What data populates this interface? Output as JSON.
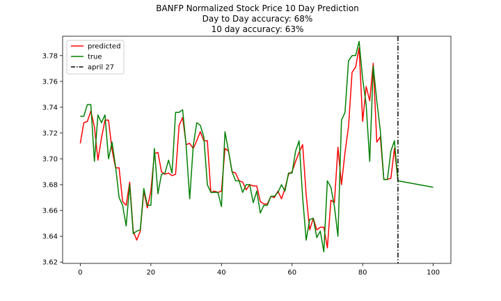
{
  "chart_data": {
    "type": "line",
    "title": "BANFP Normalized Stock Price 10 Day Prediction",
    "subtitle_lines": [
      "Day to Day accuracy: 68%",
      "10 day accuracy: 63%"
    ],
    "xlabel": "",
    "ylabel": "",
    "xlim": [
      -5,
      105
    ],
    "ylim": [
      3.619,
      3.795
    ],
    "x_ticks": [
      0,
      20,
      40,
      60,
      80,
      100
    ],
    "y_ticks": [
      3.62,
      3.64,
      3.66,
      3.68,
      3.7,
      3.72,
      3.74,
      3.76,
      3.78
    ],
    "y_tick_labels": [
      "3.62",
      "3.64",
      "3.66",
      "3.68",
      "3.70",
      "3.72",
      "3.74",
      "3.76",
      "3.78"
    ],
    "grid": false,
    "legend_position": "top-left",
    "series": [
      {
        "name": "predicted",
        "color": "#ff0000",
        "x": [
          0,
          1,
          2,
          3,
          4,
          5,
          6,
          7,
          8,
          9,
          10,
          11,
          12,
          13,
          14,
          15,
          16,
          17,
          18,
          19,
          20,
          21,
          22,
          23,
          24,
          25,
          26,
          27,
          28,
          29,
          30,
          31,
          32,
          33,
          34,
          35,
          36,
          37,
          38,
          39,
          40,
          41,
          42,
          43,
          44,
          45,
          46,
          47,
          48,
          49,
          50,
          51,
          52,
          53,
          54,
          55,
          56,
          57,
          58,
          59,
          60,
          61,
          62,
          63,
          64,
          65,
          66,
          67,
          68,
          69,
          70,
          71,
          72,
          73,
          74,
          75,
          76,
          77,
          78,
          79,
          80,
          81,
          82,
          83,
          84,
          85,
          86,
          87,
          88,
          89,
          90
        ],
        "y": [
          3.712,
          3.728,
          3.729,
          3.737,
          3.725,
          3.699,
          3.716,
          3.73,
          3.73,
          3.707,
          3.693,
          3.693,
          3.667,
          3.664,
          3.682,
          3.644,
          3.637,
          3.644,
          3.675,
          3.662,
          3.675,
          3.704,
          3.705,
          3.69,
          3.688,
          3.689,
          3.687,
          3.688,
          3.726,
          3.732,
          3.711,
          3.712,
          3.708,
          3.714,
          3.721,
          3.714,
          3.714,
          3.674,
          3.675,
          3.674,
          3.675,
          3.708,
          3.706,
          3.69,
          3.689,
          3.683,
          3.682,
          3.676,
          3.68,
          3.679,
          3.679,
          3.667,
          3.665,
          3.665,
          3.671,
          3.67,
          3.675,
          3.669,
          3.677,
          3.688,
          3.69,
          3.698,
          3.705,
          3.711,
          3.672,
          3.645,
          3.654,
          3.645,
          3.647,
          3.647,
          3.631,
          3.668,
          3.666,
          3.709,
          3.68,
          3.705,
          3.725,
          3.767,
          3.771,
          3.786,
          3.729,
          3.756,
          3.745,
          3.774,
          3.713,
          3.717,
          3.684,
          3.684,
          3.685,
          3.708,
          3.683
        ]
      },
      {
        "name": "true",
        "color": "#008000",
        "x": [
          0,
          1,
          2,
          3,
          4,
          5,
          6,
          7,
          8,
          9,
          10,
          11,
          12,
          13,
          14,
          15,
          16,
          17,
          18,
          19,
          20,
          21,
          22,
          23,
          24,
          25,
          26,
          27,
          28,
          29,
          30,
          31,
          32,
          33,
          34,
          35,
          36,
          37,
          38,
          39,
          40,
          41,
          42,
          43,
          44,
          45,
          46,
          47,
          48,
          49,
          50,
          51,
          52,
          53,
          54,
          55,
          56,
          57,
          58,
          59,
          60,
          61,
          62,
          63,
          64,
          65,
          66,
          67,
          68,
          69,
          70,
          71,
          72,
          73,
          74,
          75,
          76,
          77,
          78,
          79,
          80,
          81,
          82,
          83,
          84,
          85,
          86,
          87,
          88,
          89,
          90,
          100
        ],
        "y": [
          3.733,
          3.733,
          3.742,
          3.742,
          3.698,
          3.734,
          3.728,
          3.734,
          3.7,
          3.713,
          3.694,
          3.67,
          3.664,
          3.648,
          3.68,
          3.642,
          3.644,
          3.645,
          3.677,
          3.664,
          3.664,
          3.708,
          3.673,
          3.688,
          3.689,
          3.699,
          3.689,
          3.736,
          3.736,
          3.738,
          3.71,
          3.669,
          3.71,
          3.728,
          3.726,
          3.717,
          3.68,
          3.674,
          3.674,
          3.674,
          3.663,
          3.721,
          3.706,
          3.69,
          3.683,
          3.683,
          3.674,
          3.68,
          3.68,
          3.666,
          3.675,
          3.658,
          3.664,
          3.664,
          3.671,
          3.671,
          3.674,
          3.68,
          3.675,
          3.689,
          3.689,
          3.706,
          3.714,
          3.67,
          3.637,
          3.653,
          3.654,
          3.639,
          3.644,
          3.628,
          3.683,
          3.678,
          3.663,
          3.64,
          3.73,
          3.736,
          3.776,
          3.78,
          3.78,
          3.791,
          3.762,
          3.742,
          3.698,
          3.772,
          3.745,
          3.722,
          3.684,
          3.684,
          3.706,
          3.714,
          3.683,
          3.678
        ]
      }
    ],
    "vline": {
      "name": "april 27",
      "x": 90,
      "color": "#000000",
      "style": "dashdot"
    }
  }
}
